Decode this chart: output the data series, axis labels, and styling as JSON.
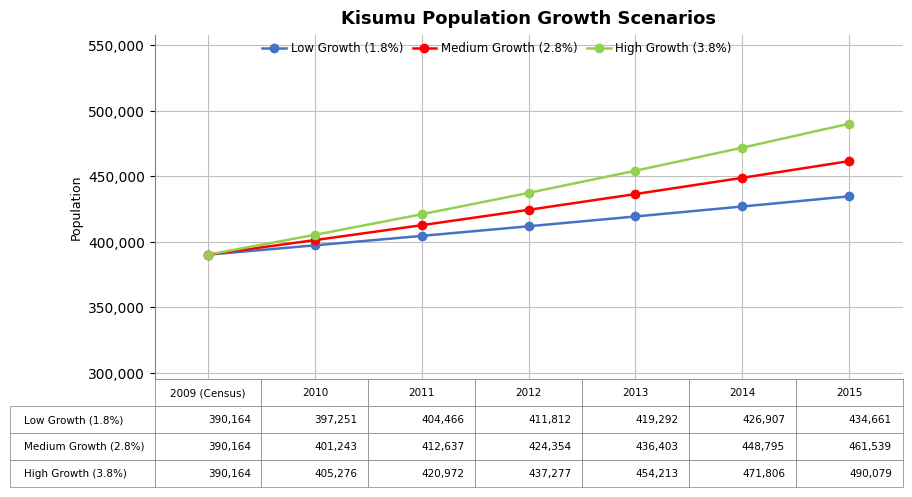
{
  "title": "Kisumu Population Growth Scenarios",
  "years": [
    "2009 (Census)",
    "2010",
    "2011",
    "2012",
    "2013",
    "2014",
    "2015"
  ],
  "year_positions": [
    0,
    1,
    2,
    3,
    4,
    5,
    6
  ],
  "series": [
    {
      "label": "Low Growth (1.8%)",
      "values": [
        390164,
        397251,
        404466,
        411812,
        419292,
        426907,
        434661
      ],
      "color": "#4472C4",
      "marker": "o"
    },
    {
      "label": "Medium Growth (2.8%)",
      "values": [
        390164,
        401243,
        412637,
        424354,
        436403,
        448795,
        461539
      ],
      "color": "#FF0000",
      "marker": "o"
    },
    {
      "label": "High Growth (3.8%)",
      "values": [
        390164,
        405276,
        420972,
        437277,
        454213,
        471806,
        490079
      ],
      "color": "#92D050",
      "marker": "o"
    }
  ],
  "ylabel": "Population",
  "ylim": [
    295000,
    558000
  ],
  "yticks": [
    300000,
    350000,
    400000,
    450000,
    500000,
    550000
  ],
  "table_row_labels": [
    "Low Growth (1.8%)",
    "Medium Growth (2.8%)",
    "High Growth (3.8%)"
  ],
  "table_col_labels": [
    "2009 (Census)",
    "2010",
    "2011",
    "2012",
    "2013",
    "2014",
    "2015"
  ],
  "table_data": [
    [
      390164,
      397251,
      404466,
      411812,
      419292,
      426907,
      434661
    ],
    [
      390164,
      401243,
      412637,
      424354,
      436403,
      448795,
      461539
    ],
    [
      390164,
      405276,
      420972,
      437277,
      454213,
      471806,
      490079
    ]
  ],
  "background_color": "#FFFFFF",
  "grid_color": "#C0C0C0",
  "title_fontsize": 13,
  "axis_label_fontsize": 9,
  "legend_fontsize": 8.5,
  "table_fontsize": 7.5
}
